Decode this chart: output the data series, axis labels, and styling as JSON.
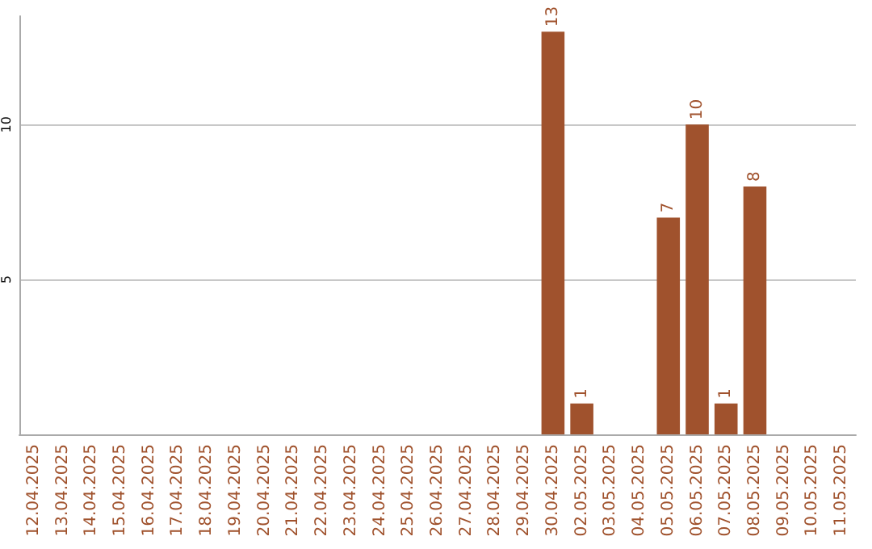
{
  "chart_data": {
    "type": "bar",
    "categories": [
      "12.04.2025",
      "13.04.2025",
      "14.04.2025",
      "15.04.2025",
      "16.04.2025",
      "17.04.2025",
      "18.04.2025",
      "19.04.2025",
      "20.04.2025",
      "21.04.2025",
      "22.04.2025",
      "23.04.2025",
      "24.04.2025",
      "25.04.2025",
      "26.04.2025",
      "27.04.2025",
      "28.04.2025",
      "29.04.2025",
      "30.04.2025",
      "02.05.2025",
      "03.05.2025",
      "04.05.2025",
      "05.05.2025",
      "06.05.2025",
      "07.05.2025",
      "08.05.2025",
      "09.05.2025",
      "10.05.2025",
      "11.05.2025"
    ],
    "values": [
      null,
      null,
      null,
      null,
      null,
      null,
      null,
      null,
      null,
      null,
      null,
      null,
      null,
      null,
      null,
      null,
      null,
      null,
      13,
      1,
      null,
      null,
      7,
      10,
      1,
      8,
      null,
      null,
      null
    ],
    "color": "#a0522d",
    "ylim": [
      0,
      13.5
    ],
    "yticks": [
      5,
      10
    ],
    "grid": "y",
    "data_labels": true
  }
}
